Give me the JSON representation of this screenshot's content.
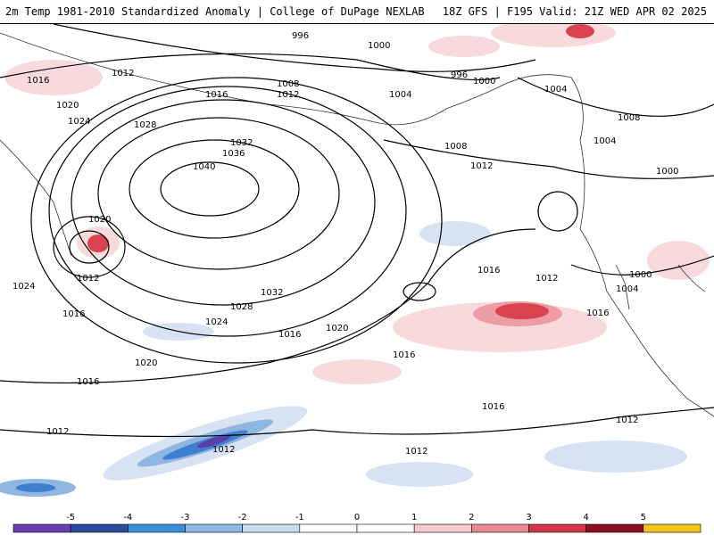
{
  "header": {
    "left": "2m Temp 1981-2010 Standardized Anomaly | College of DuPage NEXLAB",
    "right": "18Z GFS | F195 Valid: 21Z WED APR 02 2025"
  },
  "map": {
    "isobar_labels": [
      "996",
      "1000",
      "1008",
      "996",
      "1000",
      "1004",
      "1012",
      "1016",
      "1016",
      "1012",
      "1004",
      "1004",
      "1008",
      "1020",
      "1024",
      "1028",
      "1032",
      "1036",
      "1040",
      "1008",
      "1012",
      "1000",
      "1020",
      "1012",
      "1024",
      "1016",
      "1032",
      "1028",
      "1024",
      "1020",
      "1016",
      "1016",
      "1012",
      "1000",
      "1004",
      "1016",
      "1016",
      "1020",
      "1016",
      "1016",
      "1012",
      "1012",
      "1012",
      "1012"
    ],
    "colors": {
      "contour": "#000000",
      "land": "#333333",
      "warm_light": "#f8dadd",
      "warm_mid": "#ee9ca3",
      "warm_strong": "#d9434f",
      "cold_light": "#d7e3f2",
      "cold_mid": "#8fb6e0",
      "cold_strong": "#3f7fd0",
      "cold_deep": "#5b3fa8"
    }
  },
  "colorbar": {
    "ticks": [
      "-5",
      "-4",
      "-3",
      "-2",
      "-1",
      "0",
      "1",
      "2",
      "3",
      "4",
      "5"
    ],
    "colors": [
      "#6a3fb0",
      "#2b4c9c",
      "#3a8fd8",
      "#8dbbe5",
      "#c8dcf0",
      "#ffffff",
      "#ffffff",
      "#f6c9cd",
      "#e98a93",
      "#d03646",
      "#8c1020",
      "#f2c318"
    ]
  }
}
